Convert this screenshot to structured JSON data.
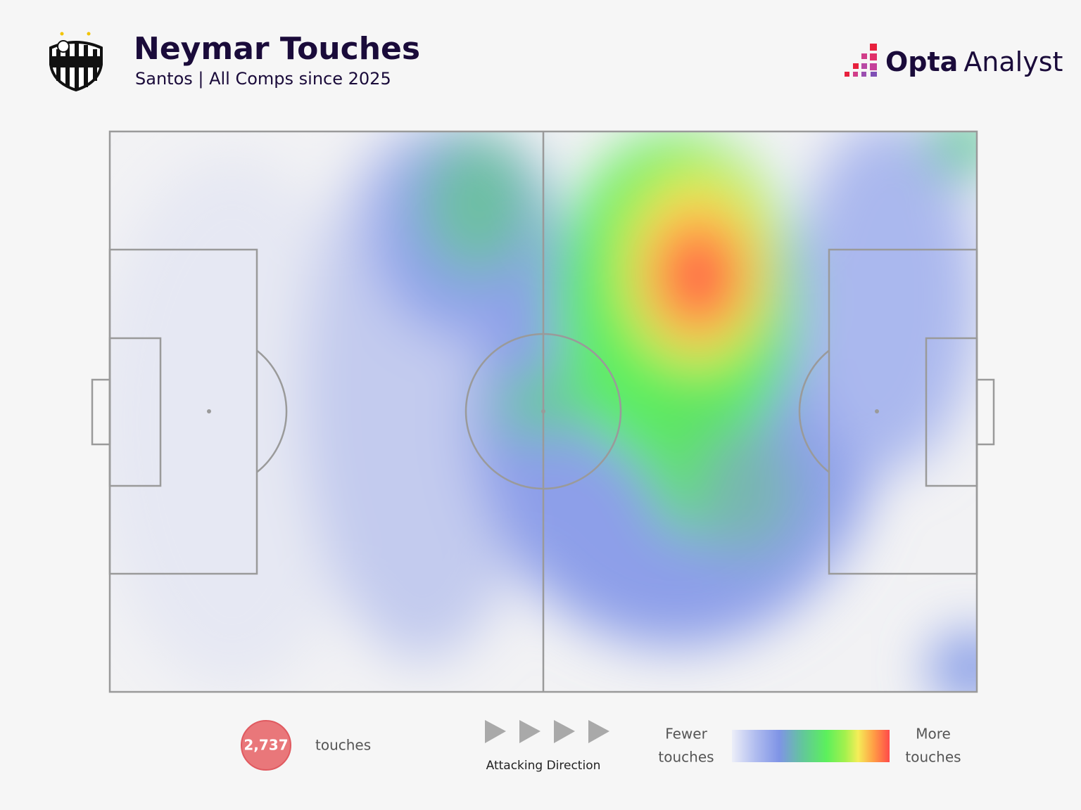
{
  "header": {
    "title": "Neymar Touches",
    "subtitle": "Santos | All Comps since 2025"
  },
  "brand": {
    "bold": "Opta",
    "light": "Analyst"
  },
  "summary": {
    "count": "2,737",
    "label": "touches"
  },
  "direction": {
    "label": "Attacking Direction"
  },
  "scale": {
    "low": [
      "Fewer",
      "touches"
    ],
    "high": [
      "More",
      "touches"
    ]
  }
}
